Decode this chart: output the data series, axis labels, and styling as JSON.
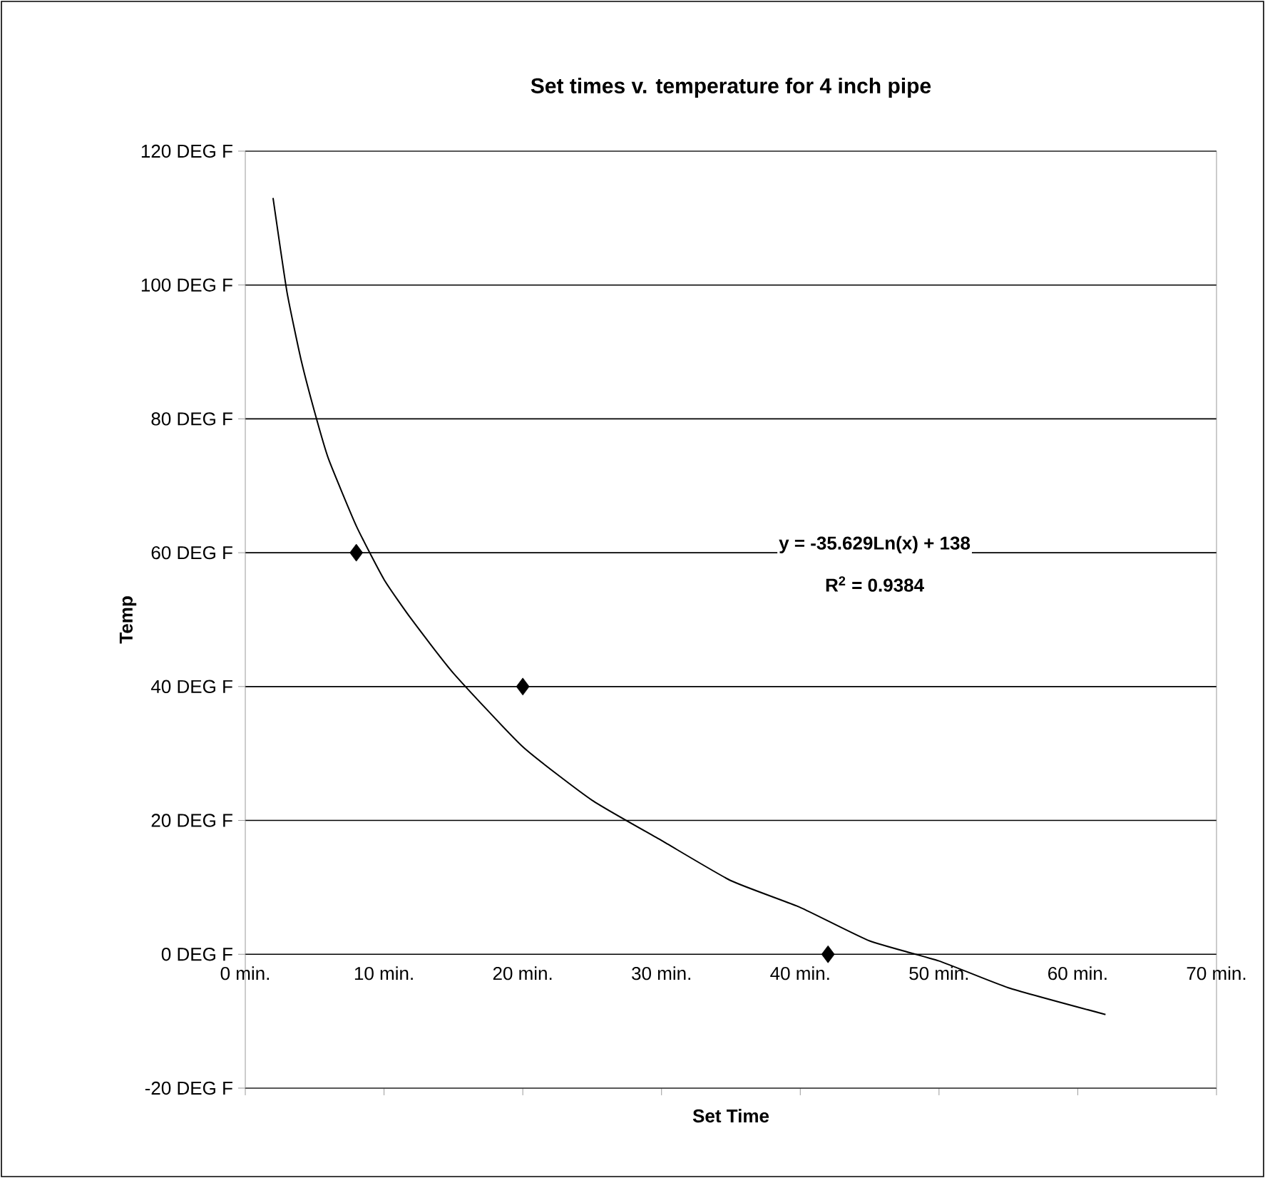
{
  "chart_data": {
    "type": "scatter",
    "title": "Set times v. temperature for 4 inch pipe",
    "xlabel": "Set Time",
    "ylabel": "Temp",
    "annotations": [
      "y = -35.629Ln(x) + 138",
      "R$^{2}$ = 0.9384"
    ],
    "series": [
      {
        "color": "#000000",
        "marker": "diamond",
        "x": [
          8,
          20,
          42
        ],
        "values": [
          60,
          40,
          0
        ]
      },
      {
        "type": "line",
        "color": "#000000",
        "marker": "none",
        "line_style": "solid",
        "x": [
          2,
          3,
          4,
          5,
          6,
          8,
          10,
          12,
          15,
          20,
          25,
          30,
          35,
          40,
          45,
          50,
          55,
          62
        ],
        "values": [
          113,
          99,
          89,
          81,
          74,
          64,
          56,
          50,
          42,
          31,
          23,
          17,
          11,
          7,
          2,
          -1,
          -5,
          -9
        ]
      }
    ],
    "xlim": [
      0,
      70
    ],
    "ylim": [
      -20,
      120
    ],
    "xticks": [
      {
        "value": 0,
        "label": "0 min."
      },
      {
        "value": 10,
        "label": "10 min."
      },
      {
        "value": 20,
        "label": "20 min."
      },
      {
        "value": 30,
        "label": "30 min."
      },
      {
        "value": 40,
        "label": "40 min."
      },
      {
        "value": 50,
        "label": "50 min."
      },
      {
        "value": 60,
        "label": "60 min."
      },
      {
        "value": 70,
        "label": "70 min."
      }
    ],
    "yticks": [
      {
        "value": -20,
        "label": "-20 DEG F"
      },
      {
        "value": 0,
        "label": "0 DEG F"
      },
      {
        "value": 20,
        "label": "20 DEG F"
      },
      {
        "value": 40,
        "label": "40 DEG F"
      },
      {
        "value": 60,
        "label": "60 DEG F"
      },
      {
        "value": 80,
        "label": "80 DEG F"
      },
      {
        "value": 100,
        "label": "100 DEG F"
      },
      {
        "value": 120,
        "label": "120 DEG F"
      }
    ],
    "grid": "y"
  }
}
